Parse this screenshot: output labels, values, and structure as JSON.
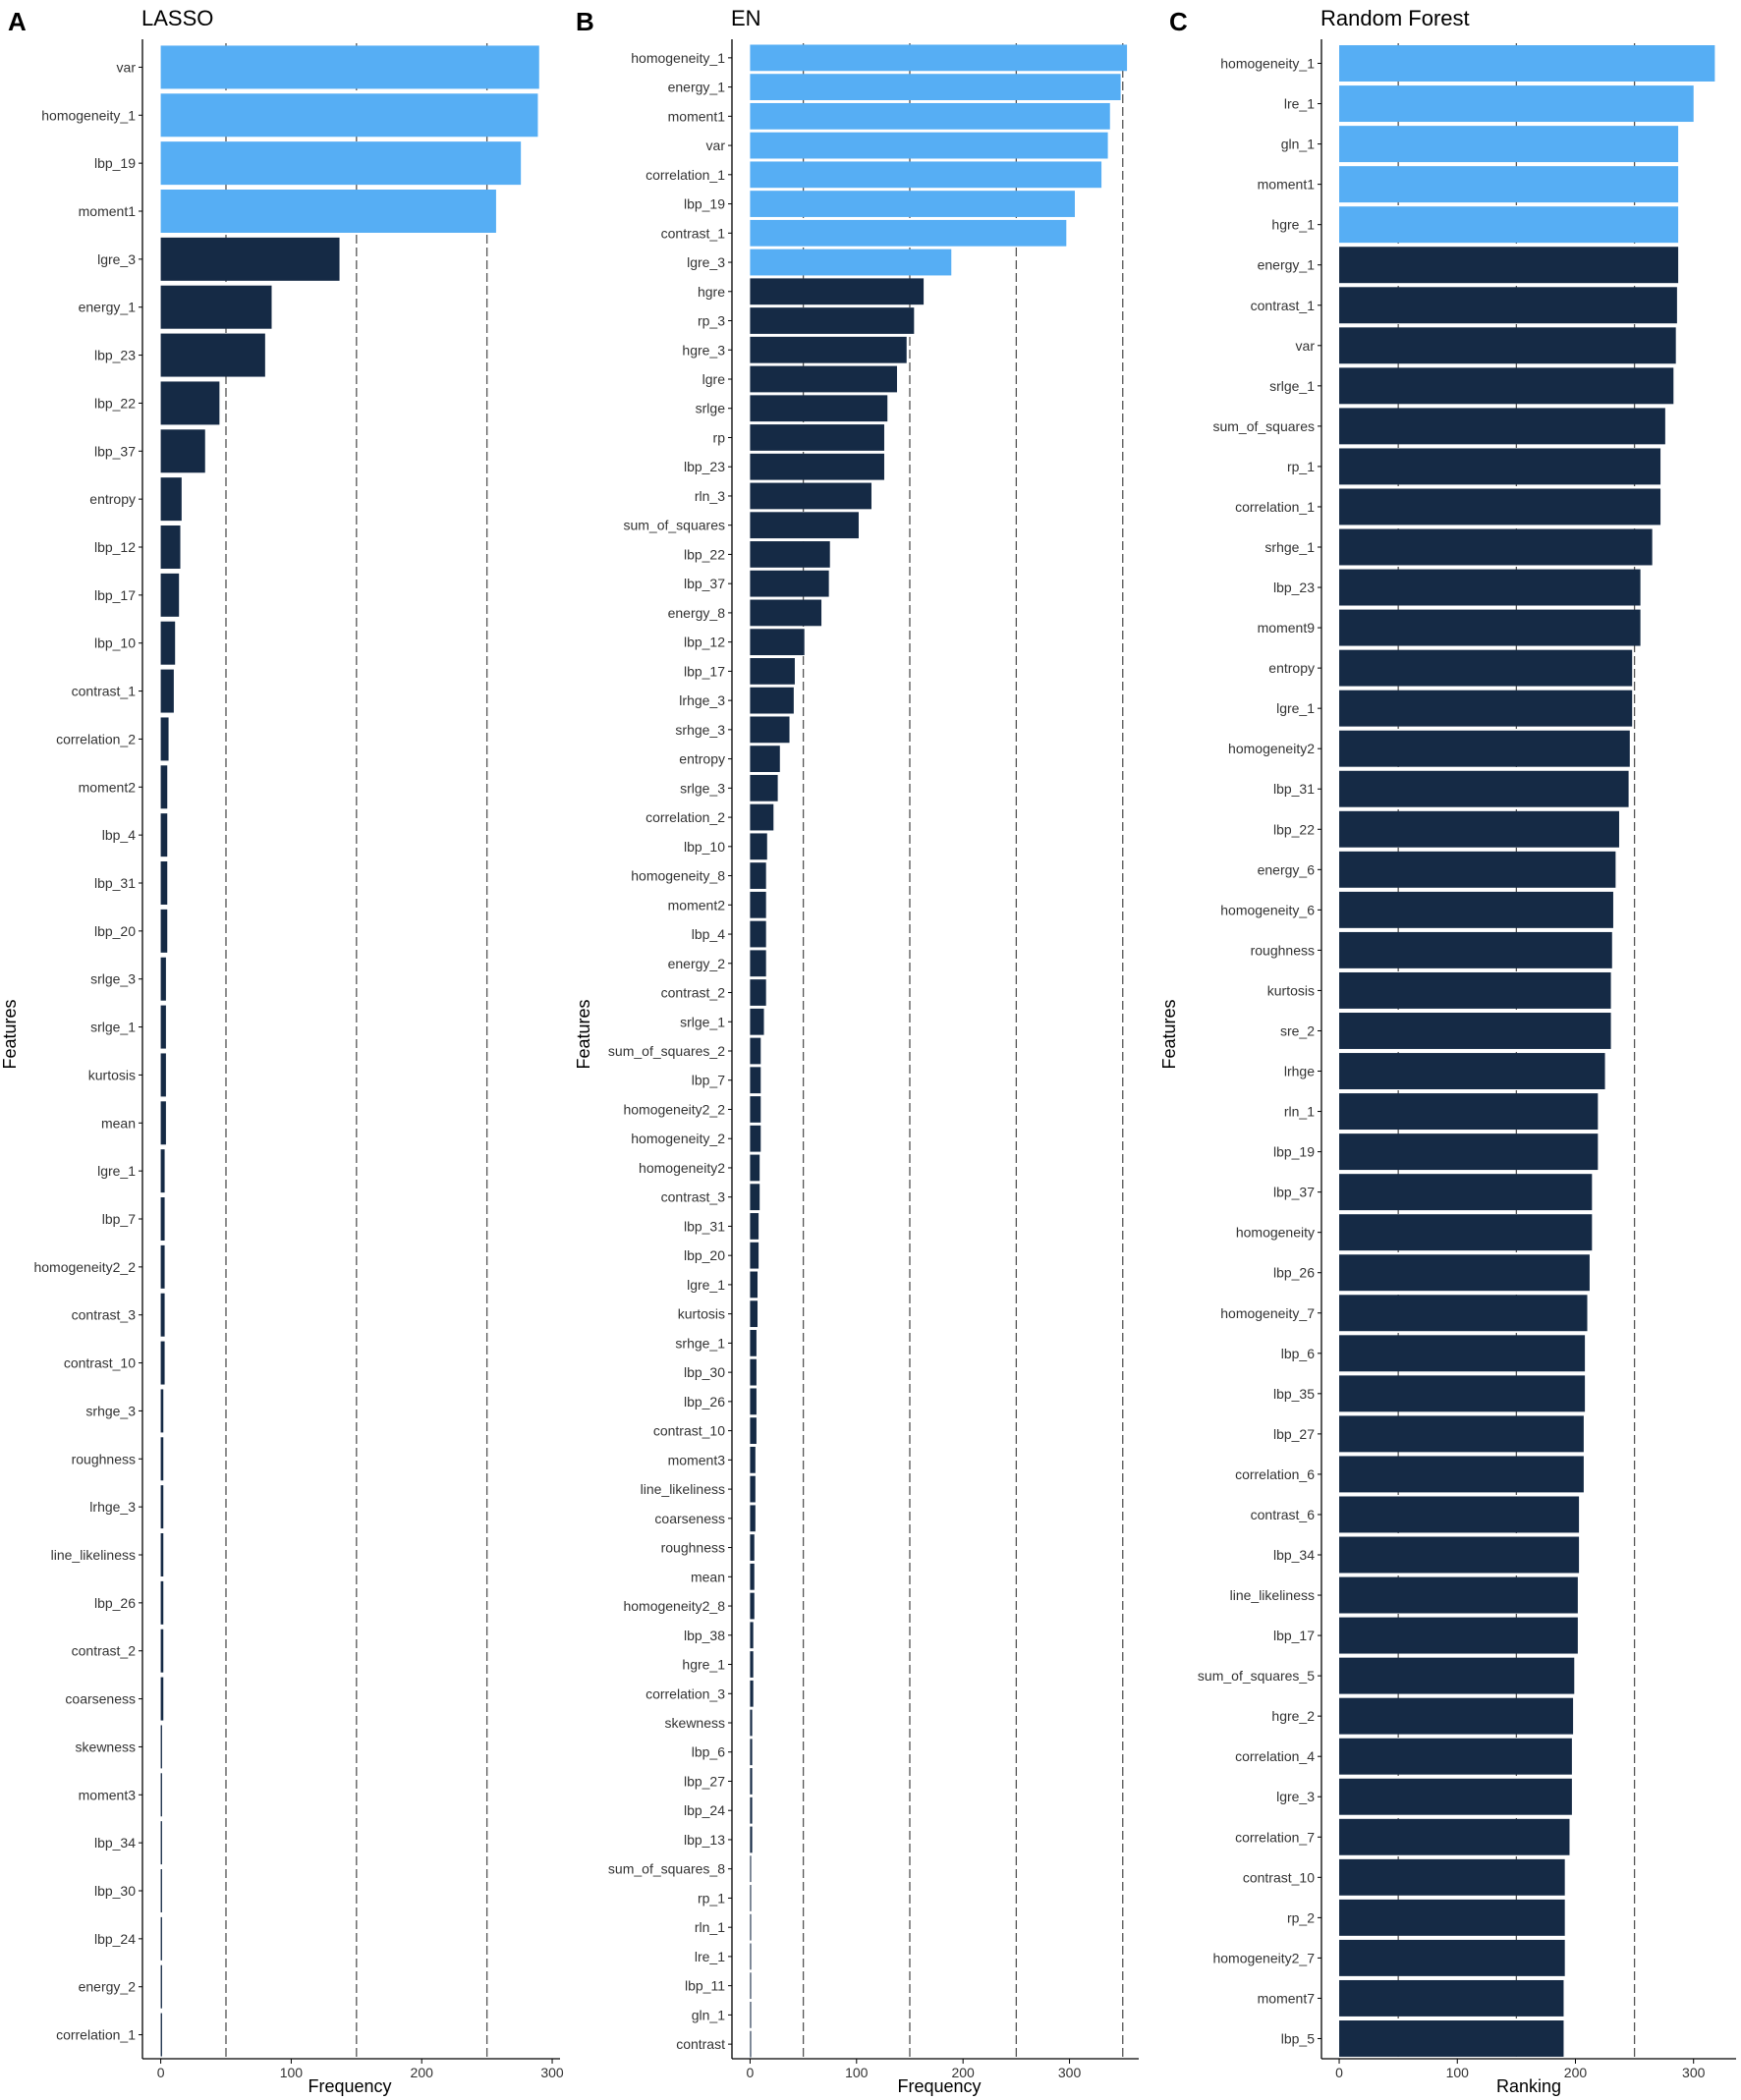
{
  "figure": {
    "panels": [
      {
        "letter": "A",
        "title": "LASSO"
      },
      {
        "letter": "B",
        "title": "EN"
      },
      {
        "letter": "C",
        "title": "Random Forest"
      }
    ]
  },
  "colors": {
    "highlight": "#56AEF4",
    "base": "#152A45",
    "refline": "#555555",
    "axis": "#000000"
  },
  "chart_data": [
    {
      "type": "bar",
      "orientation": "horizontal",
      "title": "LASSO",
      "xlabel": "Frequency",
      "ylabel": "Features",
      "xlim": [
        -14,
        306
      ],
      "xticks": [
        0,
        100,
        200,
        300
      ],
      "reference_lines": [
        50,
        150,
        250
      ],
      "highlight_count": 4,
      "categories": [
        "var",
        "homogeneity_1",
        "lbp_19",
        "moment1",
        "lgre_3",
        "energy_1",
        "lbp_23",
        "lbp_22",
        "lbp_37",
        "entropy",
        "lbp_12",
        "lbp_17",
        "lbp_10",
        "contrast_1",
        "correlation_2",
        "moment2",
        "lbp_4",
        "lbp_31",
        "lbp_20",
        "srlge_3",
        "srlge_1",
        "kurtosis",
        "mean",
        "lgre_1",
        "lbp_7",
        "homogeneity2_2",
        "contrast_3",
        "contrast_10",
        "srhge_3",
        "roughness",
        "lrhge_3",
        "line_likeliness",
        "lbp_26",
        "contrast_2",
        "coarseness",
        "skewness",
        "moment3",
        "lbp_34",
        "lbp_30",
        "lbp_24",
        "energy_2",
        "correlation_1"
      ],
      "values": [
        290,
        289,
        276,
        257,
        137,
        85,
        80,
        45,
        34,
        16,
        15,
        14,
        11,
        10,
        6,
        5,
        5,
        5,
        5,
        4,
        4,
        4,
        4,
        3,
        3,
        3,
        3,
        3,
        2,
        2,
        2,
        2,
        2,
        2,
        2,
        1,
        1,
        1,
        1,
        1,
        1,
        1
      ]
    },
    {
      "type": "bar",
      "orientation": "horizontal",
      "title": "EN",
      "xlabel": "Frequency",
      "ylabel": "Features",
      "xlim": [
        -17,
        365
      ],
      "xticks": [
        0,
        100,
        200,
        300
      ],
      "reference_lines": [
        50,
        150,
        250,
        350
      ],
      "highlight_count": 8,
      "categories": [
        "homogeneity_1",
        "energy_1",
        "moment1",
        "var",
        "correlation_1",
        "lbp_19",
        "contrast_1",
        "lgre_3",
        "hgre",
        "rp_3",
        "hgre_3",
        "lgre",
        "srlge",
        "rp",
        "lbp_23",
        "rln_3",
        "sum_of_squares",
        "lbp_22",
        "lbp_37",
        "energy_8",
        "lbp_12",
        "lbp_17",
        "lrhge_3",
        "srhge_3",
        "entropy",
        "srlge_3",
        "correlation_2",
        "lbp_10",
        "homogeneity_8",
        "moment2",
        "lbp_4",
        "energy_2",
        "contrast_2",
        "srlge_1",
        "sum_of_squares_2",
        "lbp_7",
        "homogeneity2_2",
        "homogeneity_2",
        "homogeneity2",
        "contrast_3",
        "lbp_31",
        "lbp_20",
        "lgre_1",
        "kurtosis",
        "srhge_1",
        "lbp_30",
        "lbp_26",
        "contrast_10",
        "moment3",
        "line_likeliness",
        "coarseness",
        "roughness",
        "mean",
        "homogeneity2_8",
        "lbp_38",
        "hgre_1",
        "correlation_3",
        "skewness",
        "lbp_6",
        "lbp_27",
        "lbp_24",
        "lbp_13",
        "sum_of_squares_8",
        "rp_1",
        "rln_1",
        "lre_1",
        "lbp_11",
        "gln_1",
        "contrast"
      ],
      "values": [
        354,
        348,
        338,
        336,
        330,
        305,
        297,
        189,
        163,
        154,
        147,
        138,
        129,
        126,
        126,
        114,
        102,
        75,
        74,
        67,
        51,
        42,
        41,
        37,
        28,
        26,
        22,
        16,
        15,
        15,
        15,
        15,
        15,
        13,
        10,
        10,
        10,
        10,
        9,
        9,
        8,
        8,
        7,
        7,
        6,
        6,
        6,
        6,
        5,
        5,
        5,
        4,
        4,
        4,
        3,
        3,
        3,
        2,
        2,
        2,
        2,
        2,
        1,
        1,
        1,
        1,
        1,
        1,
        1
      ]
    },
    {
      "type": "bar",
      "orientation": "horizontal",
      "title": "Random Forest",
      "xlabel": "Ranking",
      "ylabel": "Features",
      "xlim": [
        -15,
        336
      ],
      "xticks": [
        0,
        100,
        200,
        300
      ],
      "reference_lines": [
        50,
        150,
        250
      ],
      "highlight_count": 5,
      "categories": [
        "homogeneity_1",
        "lre_1",
        "gln_1",
        "moment1",
        "hgre_1",
        "energy_1",
        "contrast_1",
        "var",
        "srlge_1",
        "sum_of_squares",
        "rp_1",
        "correlation_1",
        "srhge_1",
        "lbp_23",
        "moment9",
        "entropy",
        "lgre_1",
        "homogeneity2",
        "lbp_31",
        "lbp_22",
        "energy_6",
        "homogeneity_6",
        "roughness",
        "kurtosis",
        "sre_2",
        "lrhge",
        "rln_1",
        "lbp_19",
        "lbp_37",
        "homogeneity",
        "lbp_26",
        "homogeneity_7",
        "lbp_6",
        "lbp_35",
        "lbp_27",
        "correlation_6",
        "contrast_6",
        "lbp_34",
        "line_likeliness",
        "lbp_17",
        "sum_of_squares_5",
        "hgre_2",
        "correlation_4",
        "lgre_3",
        "correlation_7",
        "contrast_10",
        "rp_2",
        "homogeneity2_7",
        "moment7",
        "lbp_5"
      ],
      "values": [
        318,
        300,
        287,
        287,
        287,
        287,
        286,
        285,
        283,
        276,
        272,
        272,
        265,
        255,
        255,
        248,
        248,
        246,
        245,
        237,
        234,
        232,
        231,
        230,
        230,
        225,
        219,
        219,
        214,
        214,
        212,
        210,
        208,
        208,
        207,
        207,
        203,
        203,
        202,
        202,
        199,
        198,
        197,
        197,
        195,
        191,
        191,
        191,
        190,
        190
      ]
    }
  ]
}
